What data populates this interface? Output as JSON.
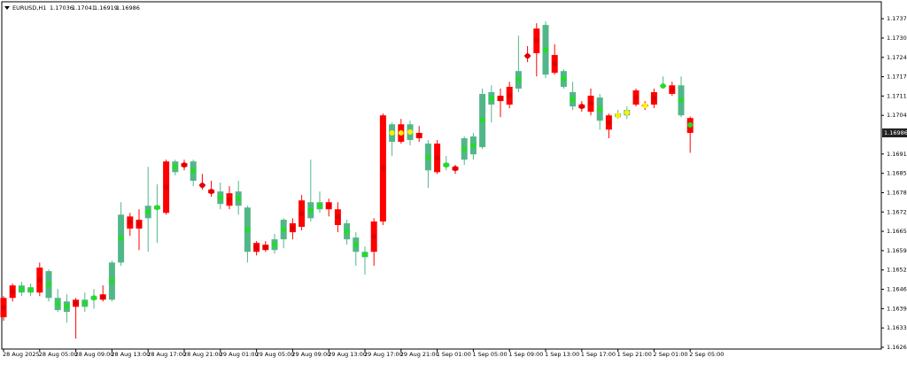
{
  "chart_data": {
    "type": "candlestick",
    "title": "EURUSD,H1",
    "up_color": "#52b788",
    "down_color": "#ff0000",
    "categories": [
      "28 Aug 2025",
      null,
      null,
      null,
      "28 Aug 05:00",
      null,
      null,
      null,
      "28 Aug 09:00",
      null,
      null,
      null,
      "28 Aug 13:00",
      null,
      null,
      null,
      "28 Aug 17:00",
      null,
      null,
      null,
      "28 Aug 21:00",
      null,
      null,
      null,
      "29 Aug 01:00",
      null,
      null,
      null,
      "29 Aug 05:00",
      null,
      null,
      null,
      "29 Aug 09:00",
      null,
      null,
      null,
      "29 Aug 13:00",
      null,
      null,
      null,
      "29 Aug 17:00",
      null,
      null,
      null,
      "29 Aug 21:00",
      null,
      null,
      null,
      "1 Sep 01:00",
      null,
      null,
      null,
      "1 Sep 05:00",
      null,
      null,
      null,
      "1 Sep 09:00",
      null,
      null,
      null,
      "1 Sep 13:00",
      null,
      null,
      null,
      "1 Sep 17:00",
      null,
      null,
      null,
      "1 Sep 21:00",
      null,
      null,
      null,
      "2 Sep 01:00",
      null,
      null,
      null,
      "2 Sep 05:00"
    ],
    "open": [
      1.16431,
      1.16473,
      1.16449,
      1.16449,
      1.16533,
      1.16431,
      1.1639,
      1.16384,
      1.16425,
      1.16401,
      1.16425,
      1.16443,
      1.16425,
      1.1655,
      1.16705,
      1.16694,
      1.16699,
      1.16729,
      1.1689,
      1.16854,
      1.16884,
      1.16825,
      1.16813,
      1.16795,
      1.16747,
      1.16783,
      1.16741,
      1.16586,
      1.16616,
      1.1661,
      1.16592,
      1.16628,
      1.16682,
      1.16759,
      1.16699,
      1.16729,
      1.16753,
      1.16729,
      1.16628,
      1.16586,
      1.16568,
      1.16688,
      1.17045,
      1.16956,
      1.17015,
      1.16962,
      1.16986,
      1.1686,
      1.1695,
      1.16872,
      1.16872,
      1.16896,
      1.16914,
      1.16938,
      1.17081,
      1.17111,
      1.17141,
      1.17135,
      1.17248,
      1.17337,
      1.17182,
      1.17248,
      1.17141,
      1.17075,
      1.17081,
      1.17111,
      1.17027,
      1.17045,
      1.17039,
      1.17045,
      1.17129,
      1.17081,
      1.17123,
      1.17141,
      1.17146,
      1.17045,
      1.17036
    ],
    "high": [
      1.16437,
      1.16479,
      1.16485,
      1.16479,
      1.1655,
      1.16527,
      1.16461,
      1.16443,
      1.16431,
      1.16449,
      1.16461,
      1.16473,
      1.16556,
      1.16753,
      1.16717,
      1.16729,
      1.16872,
      1.16813,
      1.16896,
      1.16896,
      1.16896,
      1.16896,
      1.16848,
      1.16825,
      1.16819,
      1.16807,
      1.16825,
      1.16741,
      1.16622,
      1.16622,
      1.16646,
      1.16699,
      1.16699,
      1.16777,
      1.16896,
      1.16789,
      1.16765,
      1.16753,
      1.16694,
      1.16652,
      1.16604,
      1.16699,
      1.17051,
      1.17021,
      1.17033,
      1.17027,
      1.17009,
      1.16962,
      1.16962,
      1.16908,
      1.16878,
      1.16974,
      1.16986,
      1.17135,
      1.17146,
      1.17135,
      1.17158,
      1.17313,
      1.17278,
      1.17355,
      1.17361,
      1.17284,
      1.172,
      1.17158,
      1.17093,
      1.17135,
      1.17117,
      1.17051,
      1.17063,
      1.17075,
      1.17135,
      1.17093,
      1.17135,
      1.17176,
      1.17158,
      1.17176,
      1.17041
    ],
    "low": [
      1.16354,
      1.16419,
      1.16437,
      1.16437,
      1.16437,
      1.16419,
      1.16384,
      1.16348,
      1.16294,
      1.16384,
      1.16395,
      1.16419,
      1.16419,
      1.16539,
      1.1664,
      1.16592,
      1.16586,
      1.16616,
      1.16711,
      1.16843,
      1.1686,
      1.16807,
      1.16795,
      1.16771,
      1.16729,
      1.16729,
      1.16711,
      1.1655,
      1.16574,
      1.16586,
      1.1658,
      1.16598,
      1.16628,
      1.16658,
      1.16688,
      1.16717,
      1.16705,
      1.16652,
      1.1661,
      1.16539,
      1.16509,
      1.16539,
      1.16676,
      1.16908,
      1.1695,
      1.16944,
      1.16956,
      1.16801,
      1.16848,
      1.1686,
      1.16848,
      1.16878,
      1.16896,
      1.16932,
      1.17021,
      1.17039,
      1.17069,
      1.17123,
      1.17224,
      1.17176,
      1.1717,
      1.17182,
      1.17135,
      1.17063,
      1.17057,
      1.17045,
      1.16997,
      1.16968,
      1.17033,
      1.17033,
      1.17075,
      1.17063,
      1.17069,
      1.17135,
      1.17111,
      1.17039,
      1.16919
    ],
    "close": [
      1.16366,
      1.16431,
      1.16473,
      1.16467,
      1.16449,
      1.16521,
      1.16431,
      1.16419,
      1.16401,
      1.16425,
      1.16437,
      1.16425,
      1.1655,
      1.16711,
      1.16664,
      1.16664,
      1.16741,
      1.16741,
      1.16717,
      1.1689,
      1.16872,
      1.1689,
      1.16807,
      1.16783,
      1.16789,
      1.16741,
      1.16789,
      1.16735,
      1.16586,
      1.16592,
      1.16628,
      1.16694,
      1.16652,
      1.1667,
      1.16753,
      1.16753,
      1.16729,
      1.16676,
      1.16682,
      1.16634,
      1.16586,
      1.16586,
      1.16688,
      1.17015,
      1.16956,
      1.17015,
      1.16968,
      1.1695,
      1.16854,
      1.16884,
      1.1686,
      1.16968,
      1.16974,
      1.17117,
      1.17123,
      1.17093,
      1.17081,
      1.17194,
      1.17242,
      1.17254,
      1.17349,
      1.17188,
      1.17194,
      1.17123,
      1.17069,
      1.17057,
      1.17105,
      1.16997,
      1.17051,
      1.17063,
      1.17081,
      1.17075,
      1.17081,
      1.17146,
      1.17117,
      1.17146,
      1.16986
    ],
    "dots": {
      "values": [
        1.16399,
        1.16452,
        1.16461,
        1.16458,
        1.16491,
        1.16476,
        1.16411,
        1.16402,
        1.16413,
        1.16413,
        1.16431,
        1.16434,
        1.16488,
        1.16631,
        1.16685,
        1.16679,
        1.1672,
        1.16735,
        1.16804,
        1.16872,
        1.16878,
        1.16858,
        1.1681,
        1.16789,
        1.16768,
        1.16762,
        1.16765,
        1.16661,
        1.16601,
        1.16601,
        1.1661,
        1.16661,
        1.16667,
        1.16715,
        1.16726,
        1.16741,
        1.16741,
        1.16703,
        1.16655,
        1.1661,
        1.16577,
        1.16637,
        1.16867,
        1.16986,
        1.16986,
        1.16989,
        1.16977,
        1.16905,
        1.16902,
        1.16878,
        1.16866,
        1.16932,
        1.16944,
        1.17028,
        1.17102,
        1.17102,
        1.17111,
        1.17165,
        1.17245,
        1.17296,
        1.17266,
        1.17218,
        1.17168,
        1.17099,
        1.17075,
        1.17084,
        1.17066,
        1.17021,
        1.17045,
        1.17054,
        1.17105,
        1.17078,
        1.17102,
        1.17144,
        1.17132,
        1.17096,
        1.17013
      ],
      "colors": [
        "#e00000",
        "#e00000",
        "#22dd22",
        "#22dd22",
        "#e00000",
        "#22dd22",
        "#22dd22",
        "#22dd22",
        "#e00000",
        "#22dd22",
        "#22dd22",
        "#e00000",
        "#22dd22",
        "#22dd22",
        "#e00000",
        "#e00000",
        "#22dd22",
        "#22dd22",
        "#e00000",
        "#22dd22",
        "#e00000",
        "#22dd22",
        "#e00000",
        "#e00000",
        "#22dd22",
        "#e00000",
        "#22dd22",
        "#22dd22",
        "#e00000",
        "#e00000",
        "#22dd22",
        "#22dd22",
        "#e00000",
        "#e00000",
        "#22dd22",
        "#22dd22",
        "#e00000",
        "#e00000",
        "#22dd22",
        "#22dd22",
        "#22dd22",
        "#e00000",
        "#e00000",
        "#ffee00",
        "#ffee00",
        "#ffee00",
        "#e00000",
        "#22dd22",
        "#e00000",
        "#22dd22",
        "#e00000",
        "#22dd22",
        "#22dd22",
        "#22dd22",
        "#22dd22",
        "#e00000",
        "#e00000",
        "#22dd22",
        "#e00000",
        "#e00000",
        "#22dd22",
        "#e00000",
        "#22dd22",
        "#22dd22",
        "#e00000",
        "#e00000",
        "#22dd22",
        "#e00000",
        "#ffee00",
        "#ffee00",
        "#e00000",
        "#ffee00",
        "#e00000",
        "#22dd22",
        "#e00000",
        "#22dd22",
        "#22dd22"
      ]
    },
    "ylim": [
      1.16259,
      1.17427
    ],
    "yticks": [
      {
        "value": 1.1737,
        "label": "1.17370"
      },
      1.17305,
      {
        "value": 1.1724,
        "label": "1.17240"
      },
      1.17175,
      {
        "value": 1.1711,
        "label": "1.17110"
      },
      1.17045,
      1.16915,
      {
        "value": 1.1685,
        "label": "1.16850"
      },
      1.16785,
      {
        "value": 1.1672,
        "label": "1.16720"
      },
      1.16655,
      {
        "value": 1.1659,
        "label": "1.16590"
      },
      1.16525,
      {
        "value": 1.1646,
        "label": "1.16460"
      },
      1.16395,
      {
        "value": 1.1633,
        "label": "1.16330"
      },
      1.16265
    ],
    "grid": false
  }
}
